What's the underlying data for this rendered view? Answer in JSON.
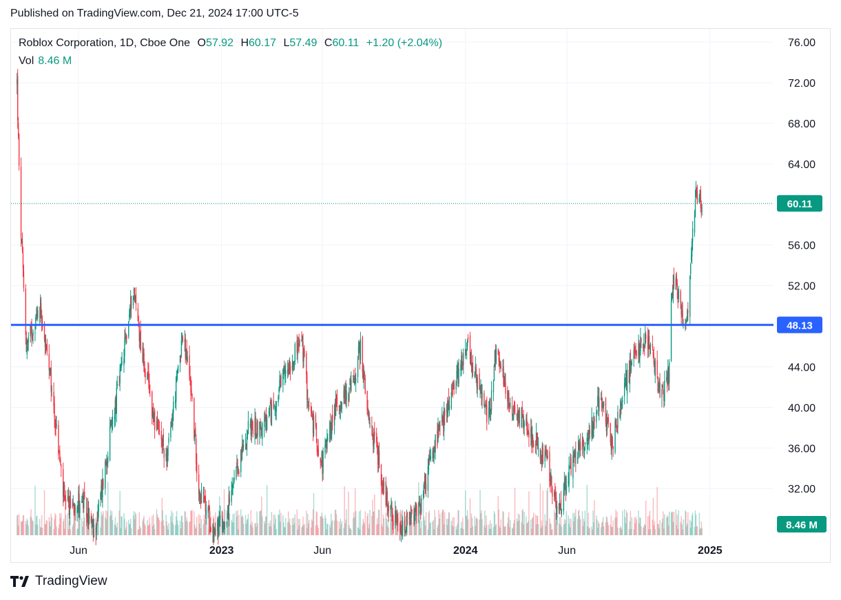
{
  "header": {
    "published": "Published on TradingView.com, Dec 21, 2024 17:00 UTC-5"
  },
  "legend": {
    "symbol": "Roblox Corporation, 1D, Cboe One",
    "o_label": "O",
    "o_value": "57.92",
    "h_label": "H",
    "h_value": "60.17",
    "l_label": "L",
    "l_value": "57.49",
    "c_label": "C",
    "c_value": "60.11",
    "change": "+1.20 (+2.04%)",
    "vol_label": "Vol",
    "vol_value": "8.46 M"
  },
  "footer": {
    "brand": "TradingView"
  },
  "colors": {
    "up": "#089981",
    "down": "#f23645",
    "level_line": "#2962ff",
    "grid": "#f0f3fa"
  },
  "chart_data": {
    "type": "candlestick",
    "symbol": "Roblox Corporation",
    "interval": "1D",
    "x_tick_labels": [
      "Jun",
      "2023",
      "Jun",
      "2024",
      "Jun",
      "2025"
    ],
    "y_tick_labels": [
      "32.00",
      "36.00",
      "40.00",
      "44.00",
      "48.00",
      "52.00",
      "56.00",
      "60.00",
      "64.00",
      "68.00",
      "72.00",
      "76.00"
    ],
    "y_range": [
      27.4,
      77.3
    ],
    "grid": true,
    "last_price": 60.11,
    "last_price_label": "60.11",
    "level_line": 48.13,
    "level_line_label": "48.13",
    "volume_last_label": "8.46 M",
    "price_path": [
      [
        "2022-03-01",
        72
      ],
      [
        "2022-03-05",
        60
      ],
      [
        "2022-03-15",
        46
      ],
      [
        "2022-04-05",
        50
      ],
      [
        "2022-04-25",
        40
      ],
      [
        "2022-05-12",
        30
      ],
      [
        "2022-06-05",
        31
      ],
      [
        "2022-06-25",
        27.5
      ],
      [
        "2022-07-20",
        38
      ],
      [
        "2022-08-05",
        44
      ],
      [
        "2022-08-22",
        52
      ],
      [
        "2022-09-05",
        45
      ],
      [
        "2022-09-25",
        38
      ],
      [
        "2022-10-12",
        35
      ],
      [
        "2022-11-03",
        47
      ],
      [
        "2022-11-15",
        43
      ],
      [
        "2022-11-28",
        32
      ],
      [
        "2022-12-20",
        28
      ],
      [
        "2023-01-05",
        28.5
      ],
      [
        "2023-02-10",
        38
      ],
      [
        "2023-03-05",
        38
      ],
      [
        "2023-03-20",
        40
      ],
      [
        "2023-04-10",
        44
      ],
      [
        "2023-05-01",
        46.5
      ],
      [
        "2023-05-12",
        40
      ],
      [
        "2023-06-01",
        34.5
      ],
      [
        "2023-06-20",
        40
      ],
      [
        "2023-07-15",
        42
      ],
      [
        "2023-07-28",
        46
      ],
      [
        "2023-08-10",
        38
      ],
      [
        "2023-08-20",
        36.5
      ],
      [
        "2023-08-31",
        32
      ],
      [
        "2023-09-25",
        27.5
      ],
      [
        "2023-10-25",
        30
      ],
      [
        "2023-11-05",
        33.5
      ],
      [
        "2023-11-15",
        36
      ],
      [
        "2023-11-25",
        38
      ],
      [
        "2023-12-15",
        42
      ],
      [
        "2024-01-03",
        46.5
      ],
      [
        "2024-01-20",
        42
      ],
      [
        "2024-02-05",
        39
      ],
      [
        "2024-02-15",
        45.5
      ],
      [
        "2024-03-10",
        40
      ],
      [
        "2024-04-01",
        38.5
      ],
      [
        "2024-04-20",
        36
      ],
      [
        "2024-05-05",
        34
      ],
      [
        "2024-05-15",
        30
      ],
      [
        "2024-05-25",
        31
      ],
      [
        "2024-06-10",
        35
      ],
      [
        "2024-07-01",
        37
      ],
      [
        "2024-07-20",
        41
      ],
      [
        "2024-08-08",
        36.5
      ],
      [
        "2024-08-25",
        42
      ],
      [
        "2024-09-10",
        45
      ],
      [
        "2024-09-28",
        47
      ],
      [
        "2024-10-10",
        44
      ],
      [
        "2024-10-20",
        41
      ],
      [
        "2024-10-31",
        43
      ],
      [
        "2024-11-02",
        48
      ],
      [
        "2024-11-08",
        53
      ],
      [
        "2024-11-20",
        49
      ],
      [
        "2024-11-27",
        48.5
      ],
      [
        "2024-12-10",
        61
      ],
      [
        "2024-12-20",
        60.11
      ]
    ]
  }
}
